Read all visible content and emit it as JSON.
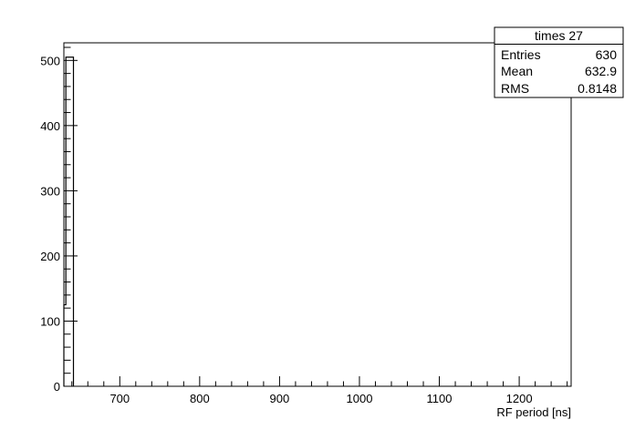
{
  "chart_data": {
    "type": "histogram",
    "xlabel": "RF period [ns]",
    "ylabel": "",
    "xlim": [
      630,
      1265
    ],
    "ylim": [
      0,
      527
    ],
    "x_ticks": [
      700,
      800,
      900,
      1000,
      1100,
      1200
    ],
    "y_ticks": [
      0,
      100,
      200,
      300,
      400,
      500
    ],
    "x_ticklabels": [
      "700",
      "800",
      "900",
      "1000",
      "1100",
      "1200"
    ],
    "y_ticklabels": [
      "0",
      "100",
      "200",
      "300",
      "400",
      "500"
    ],
    "bins": [
      {
        "x0": 630,
        "x1": 632.5,
        "value": 125
      },
      {
        "x0": 632.5,
        "x1": 642,
        "value": 505
      }
    ],
    "grid": false,
    "stats": {
      "title": "times 27",
      "rows": [
        {
          "label": "Entries",
          "value": "630"
        },
        {
          "label": "Mean",
          "value": "632.9"
        },
        {
          "label": "RMS",
          "value": "0.8148"
        }
      ]
    }
  }
}
